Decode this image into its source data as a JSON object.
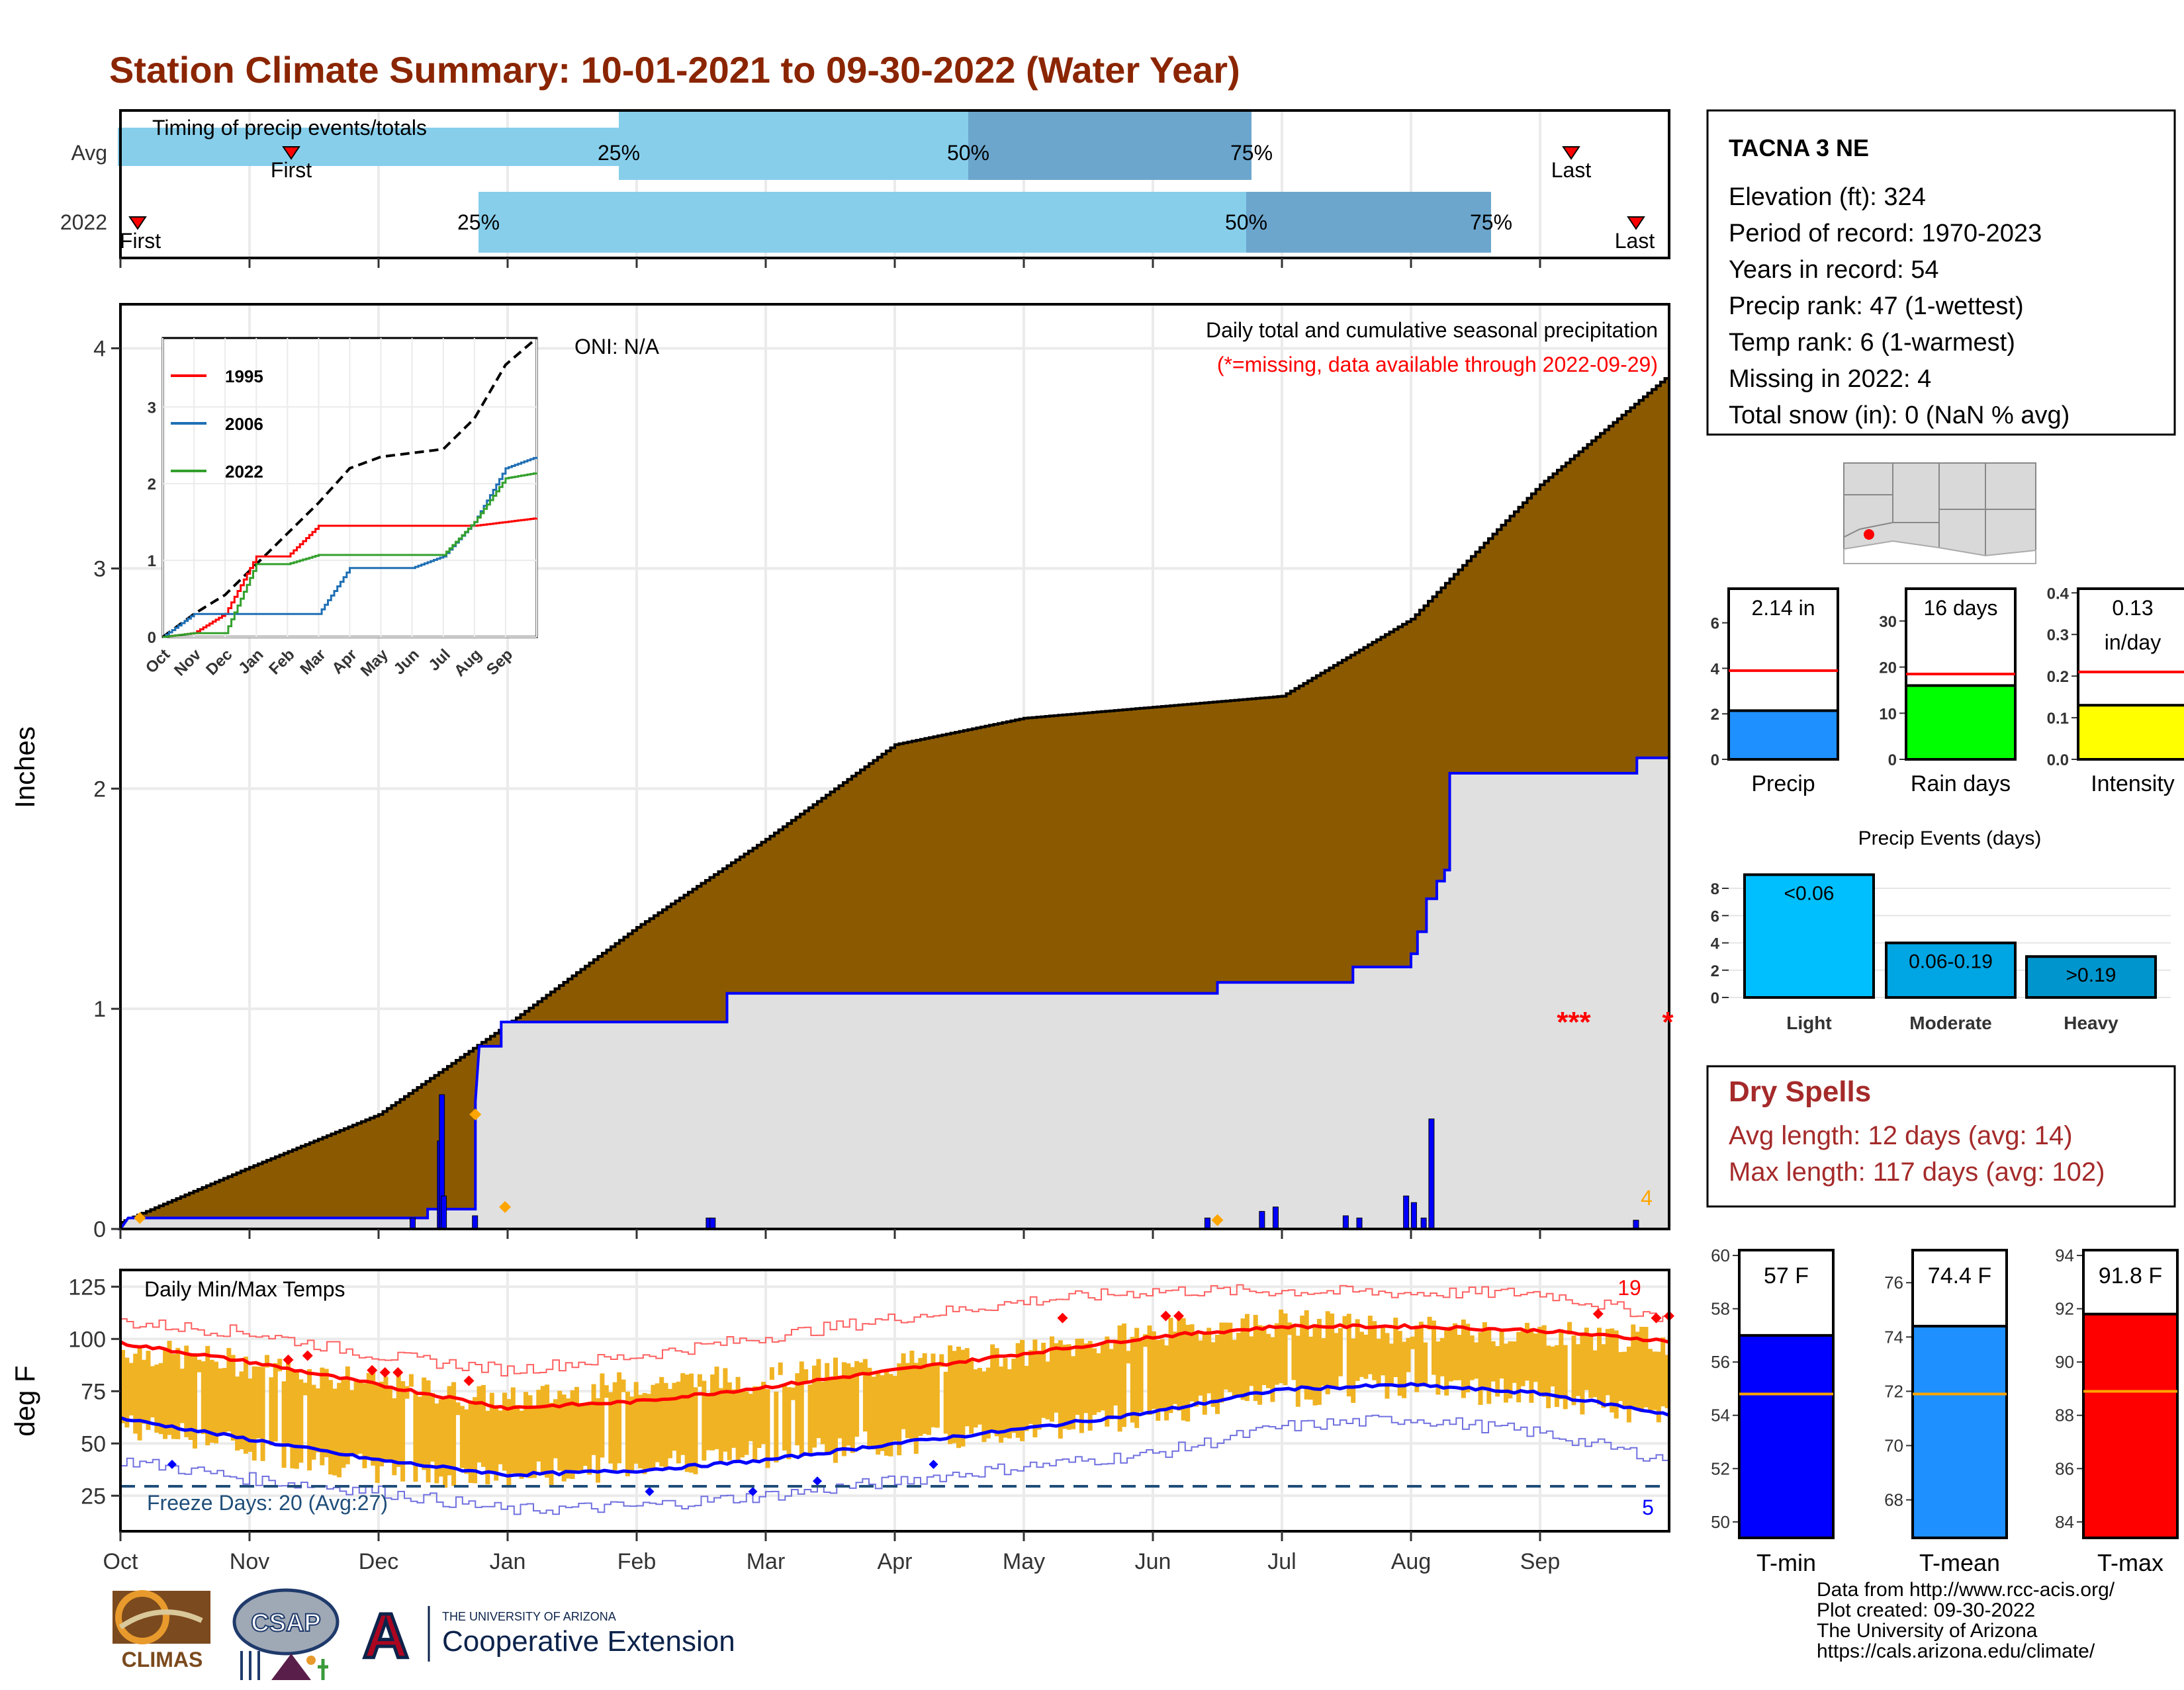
{
  "title": "Station Climate Summary: 10-01-2021 to 09-30-2022 (Water Year)",
  "colors": {
    "title": "#8B2500",
    "brown": "#8B5A00",
    "gray_fill": "#E0E0E0",
    "blue": "#0000FF",
    "light_blue": "#87CEEB",
    "mid_blue": "#6CA6CD",
    "orange": "#FFA500",
    "gold": "#F0B323",
    "red": "#FF0000",
    "dry_red": "#A52A2A",
    "green": "#00FF00",
    "yellow": "#FFFF00"
  },
  "timing": {
    "title": "Timing of precip events/totals",
    "rows": [
      "Avg",
      "2022"
    ],
    "avg": {
      "first": "First",
      "last": "Last",
      "p25": "25%",
      "p50": "50%",
      "p75": "75%"
    },
    "y2022": {
      "first": "First",
      "last": "Last",
      "p25": "25%",
      "p50": "50%",
      "p75": "75%"
    }
  },
  "precip": {
    "ylabel": "Inches",
    "yticks": [
      "0",
      "1",
      "2",
      "3",
      "4"
    ],
    "annot_title": "Daily total and cumulative seasonal precipitation",
    "annot_sub": "(*=missing, data available through 2022-09-29)",
    "oni": "ONI: N/A",
    "missing_marks": "***",
    "missing_mark_end": "*",
    "rain_days_label": "4"
  },
  "inset": {
    "months": [
      "Oct",
      "Nov",
      "Dec",
      "Jan",
      "Feb",
      "Mar",
      "Apr",
      "May",
      "Jun",
      "Jul",
      "Aug",
      "Sep"
    ],
    "yticks": [
      "0",
      "1",
      "2",
      "3"
    ],
    "legend": [
      {
        "name": "1995",
        "color": "#FF0000"
      },
      {
        "name": "2006",
        "color": "#1F6FB4"
      },
      {
        "name": "2022",
        "color": "#33A02C"
      }
    ]
  },
  "temps": {
    "title": "Daily Min/Max Temps",
    "ylabel": "deg F",
    "yticks": [
      "25",
      "50",
      "75",
      "100",
      "125"
    ],
    "freeze": "Freeze Days: 20 (Avg:27)",
    "hot_count": "19",
    "cold_count": "5"
  },
  "months": [
    "Oct",
    "Nov",
    "Dec",
    "Jan",
    "Feb",
    "Mar",
    "Apr",
    "May",
    "Jun",
    "Jul",
    "Aug",
    "Sep"
  ],
  "station": {
    "name": "TACNA 3 NE",
    "lines": [
      "Elevation (ft): 324",
      "Period of record: 1970-2023",
      "Years in record: 54",
      "Precip rank: 47 (1-wettest)",
      "Temp rank: 6 (1-warmest)",
      "Missing in 2022: 4",
      "Total snow (in): 0 (NaN % avg)"
    ]
  },
  "mini_precip": [
    {
      "label": "Precip",
      "value_text": "2.14 in",
      "value": 2.14,
      "avg": 3.9,
      "yticks": [
        "0",
        "2",
        "4",
        "6"
      ],
      "ymax": 7.5,
      "color": "#1E90FF"
    },
    {
      "label": "Rain days",
      "value_text": "16 days",
      "value": 16,
      "avg": 18.5,
      "yticks": [
        "0",
        "10",
        "20",
        "30"
      ],
      "ymax": 37,
      "color": "#00FF00"
    },
    {
      "label": "Intensity",
      "value_text": "0.13",
      "value_text2": "in/day",
      "value": 0.13,
      "avg": 0.21,
      "yticks": [
        "0.0",
        "0.1",
        "0.2",
        "0.3",
        "0.4"
      ],
      "ymax": 0.41,
      "color": "#FFFF00"
    }
  ],
  "precip_events": {
    "title": "Precip Events (days)",
    "yticks": [
      "0",
      "2",
      "4",
      "6",
      "8"
    ],
    "bars": [
      {
        "label": "Light",
        "value_text": "<0.06",
        "value": 9,
        "color": "#00BFFF"
      },
      {
        "label": "Moderate",
        "value_text": "0.06-0.19",
        "value": 4,
        "color": "#00A5E3"
      },
      {
        "label": "Heavy",
        "value_text": ">0.19",
        "value": 3,
        "color": "#0095CC"
      }
    ]
  },
  "dry_spells": {
    "title": "Dry Spells",
    "avg": "Avg length: 12 days (avg: 14)",
    "max": "Max length: 117 days (avg: 102)"
  },
  "mini_temp": [
    {
      "label": "T-min",
      "value_text": "57 F",
      "value": 57.0,
      "avg": 54.8,
      "ymin": 49.4,
      "ymax": 60.2,
      "yticks": [
        50,
        52,
        54,
        56,
        58,
        60
      ],
      "color": "#0000FF"
    },
    {
      "label": "T-mean",
      "value_text": "74.4 F",
      "value": 74.4,
      "avg": 71.9,
      "ymin": 66.6,
      "ymax": 77.2,
      "yticks": [
        68,
        70,
        72,
        74,
        76
      ],
      "color": "#1E90FF"
    },
    {
      "label": "T-max",
      "value_text": "91.8 F",
      "value": 91.8,
      "avg": 88.9,
      "ymin": 83.4,
      "ymax": 94.2,
      "yticks": [
        84,
        86,
        88,
        90,
        92,
        94
      ],
      "color": "#FF0000"
    }
  ],
  "logos": {
    "climas": "CLIMAS",
    "csap": "CSAP",
    "ua_small": "THE UNIVERSITY OF ARIZONA",
    "ua_big": "Cooperative Extension",
    "ua_letter": "A"
  },
  "footer": [
    "Data from http://www.rcc-acis.org/",
    "Plot created: 09-30-2022",
    "The University of Arizona",
    "https://cals.arizona.edu/climate/"
  ],
  "chart_data": [
    {
      "type": "area",
      "name": "cumulative_precip",
      "x_unit": "month",
      "x": [
        "Oct",
        "Nov",
        "Dec",
        "Jan",
        "Feb",
        "Mar",
        "Apr",
        "May",
        "Jun",
        "Jul",
        "Aug",
        "Sep",
        "end"
      ],
      "avg_cumulative": [
        0.03,
        0.28,
        0.52,
        0.93,
        1.37,
        1.77,
        2.2,
        2.32,
        2.37,
        2.42,
        2.77,
        3.38,
        3.88
      ],
      "y2022_cumulative": [
        0.05,
        0.05,
        0.05,
        0.95,
        0.95,
        1.07,
        1.07,
        1.07,
        1.07,
        1.07,
        1.5,
        2.07,
        2.14
      ],
      "daily_2022": [
        {
          "day": 150,
          "in": 0.05
        },
        {
          "day": 164,
          "in": 0.4
        },
        {
          "day": 165,
          "in": 0.61
        },
        {
          "day": 166,
          "in": 0.15
        },
        {
          "day": 182,
          "in": 0.06
        },
        {
          "day": 302,
          "in": 0.05
        },
        {
          "day": 304,
          "in": 0.05
        },
        {
          "day": 558,
          "in": 0.05
        },
        {
          "day": 586,
          "in": 0.08
        },
        {
          "day": 593,
          "in": 0.1
        },
        {
          "day": 629,
          "in": 0.06
        },
        {
          "day": 636,
          "in": 0.05
        },
        {
          "day": 660,
          "in": 0.15
        },
        {
          "day": 664,
          "in": 0.12
        },
        {
          "day": 669,
          "in": 0.05
        },
        {
          "day": 673,
          "in": 0.5
        },
        {
          "day": 778,
          "in": 0.04
        }
      ],
      "ylim": [
        0,
        4.2
      ]
    },
    {
      "type": "line",
      "name": "inset_cumulative",
      "x": [
        "Oct",
        "Nov",
        "Dec",
        "Jan",
        "Feb",
        "Mar",
        "Apr",
        "May",
        "Jun",
        "Jul",
        "Aug",
        "Sep",
        "end"
      ],
      "series": [
        {
          "name": "avg",
          "values": [
            0.0,
            0.3,
            0.55,
            0.95,
            1.35,
            1.75,
            2.2,
            2.35,
            2.4,
            2.45,
            2.85,
            3.55,
            3.9
          ]
        },
        {
          "name": "1995",
          "values": [
            0.0,
            0.05,
            0.3,
            1.05,
            1.05,
            1.45,
            1.45,
            1.45,
            1.45,
            1.45,
            1.45,
            1.5,
            1.55
          ]
        },
        {
          "name": "2006",
          "values": [
            0.0,
            0.3,
            0.3,
            0.3,
            0.3,
            0.3,
            0.9,
            0.9,
            0.9,
            1.05,
            1.5,
            2.2,
            2.35
          ]
        },
        {
          "name": "2022",
          "values": [
            0.0,
            0.05,
            0.05,
            0.95,
            0.95,
            1.07,
            1.07,
            1.07,
            1.07,
            1.07,
            1.5,
            2.07,
            2.14
          ]
        }
      ],
      "ylim": [
        0,
        3.9
      ]
    },
    {
      "type": "line",
      "name": "daily_temps",
      "x": [
        "Oct",
        "Nov",
        "Dec",
        "Jan",
        "Feb",
        "Mar",
        "Apr",
        "May",
        "Jun",
        "Jul",
        "Aug",
        "Sep",
        "end"
      ],
      "series": [
        {
          "name": "avg_tmax",
          "values": [
            98,
            89,
            78,
            67,
            70,
            77,
            85,
            93,
            101,
            106,
            106,
            104,
            99
          ]
        },
        {
          "name": "avg_tmin",
          "values": [
            62,
            52,
            42,
            35,
            37,
            42,
            50,
            57,
            65,
            76,
            78,
            74,
            64
          ]
        },
        {
          "name": "record_high",
          "values": [
            108,
            103,
            92,
            85,
            92,
            101,
            110,
            118,
            123,
            123,
            122,
            122,
            110
          ]
        },
        {
          "name": "record_low",
          "values": [
            42,
            33,
            27,
            18,
            20,
            25,
            32,
            39,
            45,
            58,
            62,
            55,
            42
          ]
        },
        {
          "name": "tmax_2022",
          "values": [
            95,
            88,
            79,
            70,
            79,
            81,
            88,
            93,
            103,
            108,
            104,
            103,
            99
          ]
        },
        {
          "name": "tmin_2022",
          "values": [
            59,
            48,
            37,
            34,
            40,
            45,
            50,
            57,
            64,
            74,
            78,
            73,
            62
          ]
        }
      ],
      "freeze_line": 32,
      "ylim": [
        8,
        133
      ]
    }
  ]
}
